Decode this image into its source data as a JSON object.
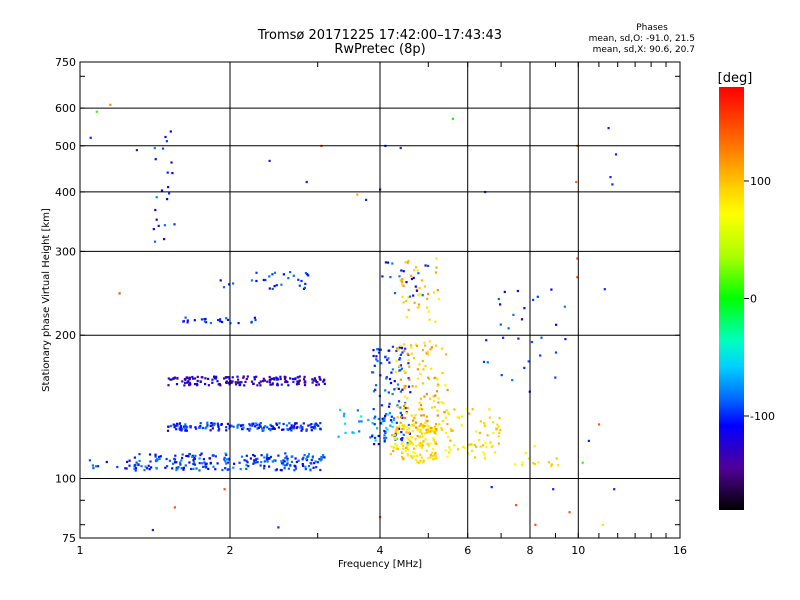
{
  "chart_data": {
    "type": "scatter",
    "title": "Tromsø 20171225 17:42:00–17:43:43",
    "subtitle": "RwPretec (8p)",
    "xlabel": "Frequency [MHz]",
    "ylabel": "Stationary phase Virtual Height [km]",
    "x_scale": "log",
    "y_scale": "log",
    "xlim": [
      1,
      16
    ],
    "ylim": [
      75,
      750
    ],
    "x_ticks": [
      1,
      2,
      4,
      6,
      8,
      10,
      16
    ],
    "x_tick_labels": [
      "1",
      "2",
      "4",
      "6",
      "8",
      "10",
      "16"
    ],
    "y_ticks": [
      75,
      100,
      200,
      300,
      400,
      500,
      600,
      750
    ],
    "y_tick_labels": [
      "75",
      "100",
      "200",
      "300",
      "400",
      "500",
      "600",
      "750"
    ],
    "grid": true,
    "stats": {
      "heading": "Phases",
      "line_o": "mean, sd,O: -91.0, 21.5",
      "line_x": "mean, sd,X:  90.6, 20.7"
    },
    "colorbar": {
      "label": "[deg]",
      "range": [
        -180,
        180
      ],
      "ticks": [
        100,
        0,
        -100
      ],
      "tick_labels": [
        "100",
        "0",
        "-100"
      ],
      "placement": "right"
    },
    "clusters": [
      {
        "f": [
          1.0,
          1.3
        ],
        "h": [
          104,
          110
        ],
        "phase": -100,
        "n": 14
      },
      {
        "f": [
          1.28,
          3.1
        ],
        "h": [
          104,
          113
        ],
        "phase": -95,
        "n": 230
      },
      {
        "f": [
          1.5,
          3.1
        ],
        "h": [
          126,
          131
        ],
        "phase": -100,
        "n": 160
      },
      {
        "f": [
          1.5,
          3.1
        ],
        "h": [
          157,
          164
        ],
        "phase": -125,
        "n": 170
      },
      {
        "f": [
          1.6,
          2.3
        ],
        "h": [
          212,
          218
        ],
        "phase": -100,
        "n": 24
      },
      {
        "f": [
          1.9,
          3.0
        ],
        "h": [
          250,
          272
        ],
        "phase": -100,
        "n": 30
      },
      {
        "f": [
          1.4,
          1.55
        ],
        "h": [
          300,
          540
        ],
        "phase": -100,
        "n": 22
      },
      {
        "f": [
          3.3,
          4.4
        ],
        "h": [
          120,
          140
        ],
        "phase": -60,
        "n": 35
      },
      {
        "f": [
          3.85,
          4.6
        ],
        "h": [
          118,
          190
        ],
        "phase": -100,
        "n": 110
      },
      {
        "f": [
          4.2,
          5.2
        ],
        "h": [
          108,
          130
        ],
        "phase": 100,
        "n": 150
      },
      {
        "f": [
          4.3,
          5.5
        ],
        "h": [
          125,
          195
        ],
        "phase": 110,
        "n": 120
      },
      {
        "f": [
          4.4,
          5.3
        ],
        "h": [
          210,
          290
        ],
        "phase": 105,
        "n": 40
      },
      {
        "f": [
          5.3,
          7.0
        ],
        "h": [
          110,
          140
        ],
        "phase": 95,
        "n": 70
      },
      {
        "f": [
          4.0,
          5.0
        ],
        "h": [
          240,
          290
        ],
        "phase": -100,
        "n": 20
      },
      {
        "f": [
          6.4,
          9.5
        ],
        "h": [
          150,
          250
        ],
        "phase": -100,
        "n": 30
      },
      {
        "f": [
          7.4,
          9.2
        ],
        "h": [
          106,
          118
        ],
        "phase": 90,
        "n": 14
      }
    ],
    "points": [
      {
        "f": 1.05,
        "h": 520,
        "phase": -100
      },
      {
        "f": 1.08,
        "h": 590,
        "phase": 10
      },
      {
        "f": 1.15,
        "h": 610,
        "phase": 130
      },
      {
        "f": 1.3,
        "h": 490,
        "phase": -100
      },
      {
        "f": 2.4,
        "h": 465,
        "phase": -100
      },
      {
        "f": 2.85,
        "h": 420,
        "phase": -100
      },
      {
        "f": 3.05,
        "h": 500,
        "phase": 150
      },
      {
        "f": 3.6,
        "h": 395,
        "phase": 120
      },
      {
        "f": 3.75,
        "h": 385,
        "phase": -100
      },
      {
        "f": 4.0,
        "h": 405,
        "phase": -100
      },
      {
        "f": 4.1,
        "h": 500,
        "phase": -100
      },
      {
        "f": 4.4,
        "h": 495,
        "phase": -100
      },
      {
        "f": 5.6,
        "h": 570,
        "phase": 0
      },
      {
        "f": 6.5,
        "h": 400,
        "phase": -100
      },
      {
        "f": 9.95,
        "h": 500,
        "phase": 130
      },
      {
        "f": 9.9,
        "h": 420,
        "phase": 140
      },
      {
        "f": 11.5,
        "h": 545,
        "phase": -100
      },
      {
        "f": 11.6,
        "h": 430,
        "phase": -100
      },
      {
        "f": 11.7,
        "h": 415,
        "phase": -100
      },
      {
        "f": 11.9,
        "h": 480,
        "phase": -100
      },
      {
        "f": 9.95,
        "h": 290,
        "phase": 150
      },
      {
        "f": 9.95,
        "h": 265,
        "phase": 150
      },
      {
        "f": 11.3,
        "h": 250,
        "phase": -100
      },
      {
        "f": 1.2,
        "h": 245,
        "phase": 150
      },
      {
        "f": 1.95,
        "h": 95,
        "phase": 150
      },
      {
        "f": 1.55,
        "h": 87,
        "phase": 150
      },
      {
        "f": 1.4,
        "h": 78,
        "phase": -100
      },
      {
        "f": 2.5,
        "h": 79,
        "phase": -100
      },
      {
        "f": 4.0,
        "h": 83,
        "phase": 150
      },
      {
        "f": 7.5,
        "h": 88,
        "phase": 150
      },
      {
        "f": 8.2,
        "h": 80,
        "phase": 150
      },
      {
        "f": 9.6,
        "h": 85,
        "phase": 150
      },
      {
        "f": 11.2,
        "h": 80,
        "phase": 100
      },
      {
        "f": 8.9,
        "h": 95,
        "phase": -100
      },
      {
        "f": 6.7,
        "h": 96,
        "phase": -100
      },
      {
        "f": 11.8,
        "h": 95,
        "phase": -100
      },
      {
        "f": 10.5,
        "h": 120,
        "phase": -100
      },
      {
        "f": 10.2,
        "h": 108,
        "phase": 10
      },
      {
        "f": 11.0,
        "h": 130,
        "phase": 150
      }
    ]
  }
}
